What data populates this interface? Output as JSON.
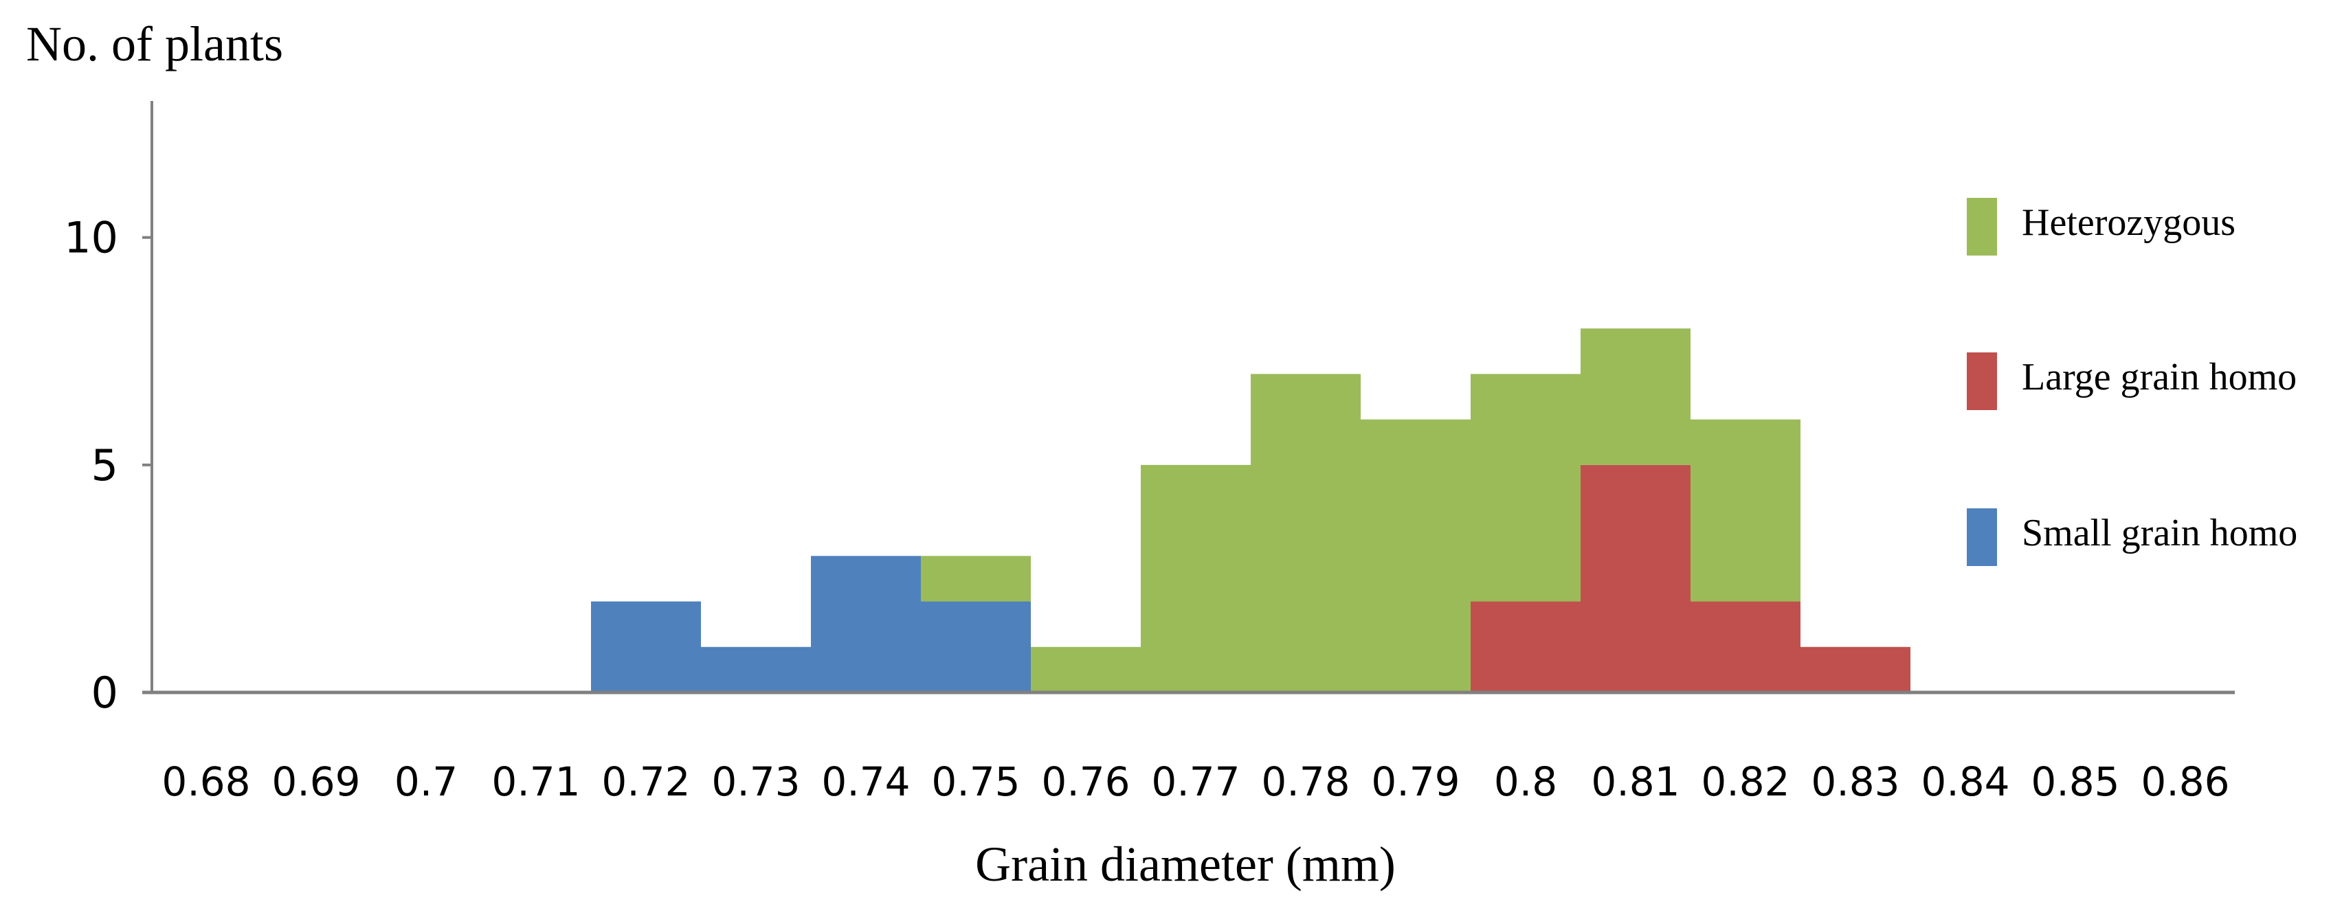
{
  "chart_data": {
    "type": "bar",
    "stacked": true,
    "title": "",
    "ylabel": "No. of plants",
    "xlabel": "Grain diameter (mm)",
    "categories": [
      "0.68",
      "0.69",
      "0.7",
      "0.71",
      "0.72",
      "0.73",
      "0.74",
      "0.75",
      "0.76",
      "0.77",
      "0.78",
      "0.79",
      "0.8",
      "0.81",
      "0.82",
      "0.83",
      "0.84",
      "0.85",
      "0.86"
    ],
    "ylim": [
      0,
      13
    ],
    "yticks": [
      "0",
      "5",
      "10"
    ],
    "legend_position": "right",
    "series": [
      {
        "name": "Small grain homo",
        "color": "#4F81BD",
        "values": [
          0,
          0,
          0,
          0,
          2,
          1,
          3,
          2,
          0,
          0,
          0,
          0,
          0,
          0,
          0,
          0,
          0,
          0,
          0
        ]
      },
      {
        "name": "Large grain homo",
        "color": "#C0504D",
        "values": [
          0,
          0,
          0,
          0,
          0,
          0,
          0,
          0,
          0,
          0,
          0,
          0,
          2,
          5,
          2,
          1,
          0,
          0,
          0
        ]
      },
      {
        "name": "Heterozygous",
        "color": "#9BBB59",
        "values": [
          0,
          0,
          0,
          0,
          0,
          0,
          0,
          1,
          1,
          5,
          7,
          6,
          5,
          3,
          4,
          0,
          0,
          0,
          0
        ]
      }
    ],
    "legend": [
      {
        "name": "Heterozygous",
        "color": "#9BBB59"
      },
      {
        "name": "Large grain homo",
        "color": "#C0504D"
      },
      {
        "name": "Small grain homo",
        "color": "#4F81BD"
      }
    ]
  }
}
